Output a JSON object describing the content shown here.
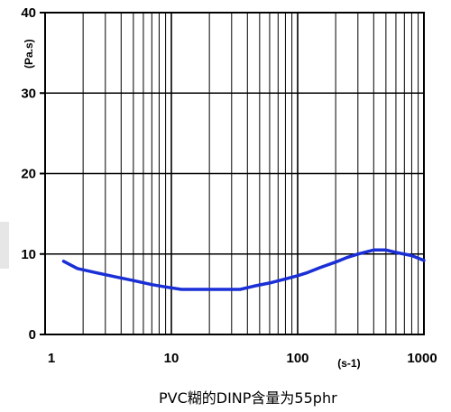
{
  "caption": "PVC糊的DINP含量为55phr",
  "chart_data": {
    "type": "line",
    "x_scale": "log",
    "xlim": [
      1,
      1000
    ],
    "ylim": [
      0,
      40
    ],
    "grid": true,
    "x_ticks": [
      1,
      10,
      100,
      1000
    ],
    "x_tick_labels": [
      "1",
      "10",
      "100",
      "1000"
    ],
    "y_ticks": [
      0,
      10,
      20,
      30,
      40
    ],
    "y_tick_labels": [
      "0",
      "10",
      "20",
      "30",
      "40"
    ],
    "xlabel": "(s-1)",
    "ylabel": "(Pa.s)",
    "series": [
      {
        "color": "#1a2fd6",
        "x": [
          1.4,
          1.8,
          2.5,
          3.5,
          5,
          7,
          9,
          12,
          18,
          25,
          35,
          45,
          60,
          80,
          100,
          120,
          150,
          200,
          250,
          300,
          400,
          500,
          600,
          800,
          1000
        ],
        "y": [
          9.1,
          8.2,
          7.7,
          7.2,
          6.7,
          6.2,
          5.9,
          5.6,
          5.6,
          5.6,
          5.6,
          6.0,
          6.4,
          6.9,
          7.3,
          7.7,
          8.3,
          9.0,
          9.6,
          10.0,
          10.5,
          10.5,
          10.2,
          9.8,
          9.2
        ]
      }
    ]
  }
}
